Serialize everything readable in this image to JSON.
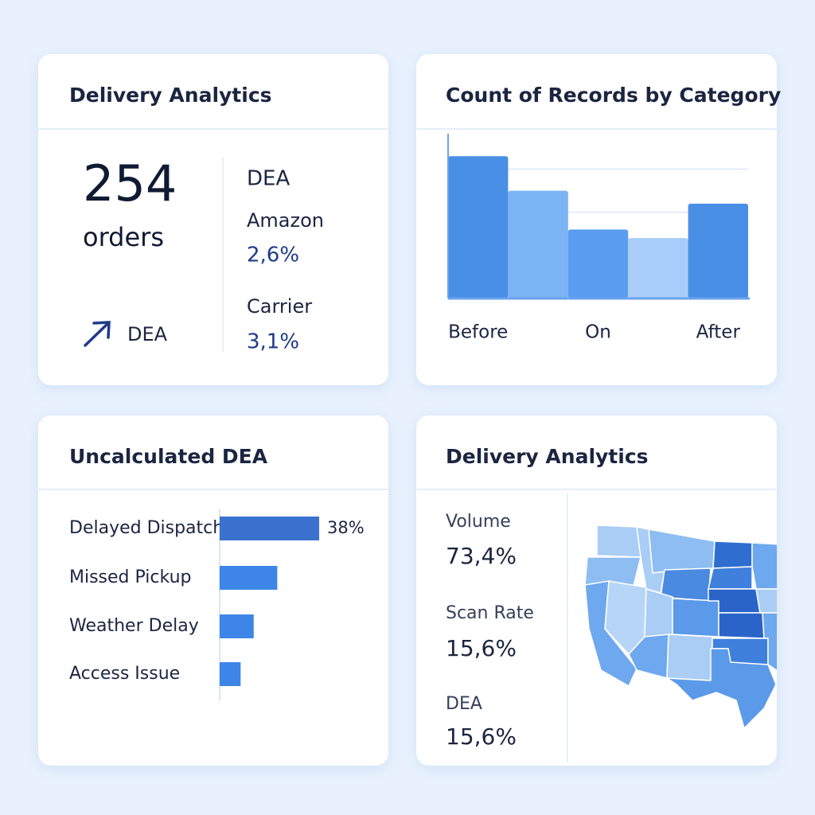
{
  "summary": {
    "title": "Delivery Analytics",
    "kpi": {
      "value": "254",
      "unit": "orders",
      "trend": "DEA"
    },
    "stats": {
      "heading": "DEA",
      "items": [
        {
          "label": "Amazon",
          "value": "2,6%"
        },
        {
          "label": "Carrier",
          "value": "3,1%"
        }
      ]
    }
  },
  "chart_data": [
    {
      "type": "bar",
      "title": "Count of Records by Category",
      "categories": [
        "Before",
        null,
        "On",
        null,
        "After"
      ],
      "values": [
        3.3,
        2.5,
        1.6,
        1.4,
        2.2
      ],
      "colors": [
        "#4a8fe6",
        "#7ab4f5",
        "#5a9cef",
        "#a8cdf8",
        "#4a8fe6"
      ],
      "ylim": [
        0,
        3.6
      ],
      "grid_lines": [
        2,
        3
      ]
    },
    {
      "type": "barh",
      "title": "Uncalculated DEA",
      "categories": [
        "Delayed Dispatch",
        "Missed Pickup",
        "Weather Delay",
        "Access Issue"
      ],
      "values": [
        38,
        22,
        13,
        8
      ],
      "value_labels": [
        "38%",
        null,
        null,
        null
      ],
      "colors": [
        "#3b72d0",
        "#3d86e8",
        "#3d86e8",
        "#3d86e8"
      ],
      "xlim": [
        0,
        40
      ]
    }
  ],
  "metrics": {
    "title": "Delivery Analytics",
    "items": [
      {
        "label": "Volume",
        "value": "73,4%"
      },
      {
        "label": "Scan Rate",
        "value": "15,6%"
      },
      {
        "label": "DEA",
        "value": "15,6%"
      }
    ]
  }
}
